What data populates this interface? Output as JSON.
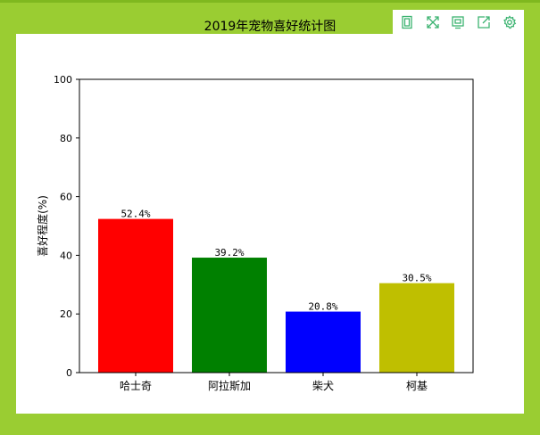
{
  "toolbox": {
    "icons": [
      "data-view-icon",
      "zoom-icon",
      "restore-icon",
      "save-image-icon",
      "settings-icon"
    ],
    "color": "#3cb371"
  },
  "chart_data": {
    "type": "bar",
    "title": "2019年宠物喜好统计图",
    "categories": [
      "哈士奇",
      "阿拉斯加",
      "柴犬",
      "柯基"
    ],
    "values": [
      52.4,
      39.2,
      20.8,
      30.5
    ],
    "data_labels": [
      "52.4%",
      "39.2%",
      "20.8%",
      "30.5%"
    ],
    "colors": [
      "#ff0000",
      "#008000",
      "#0000ff",
      "#bfbf00"
    ],
    "xlabel": "",
    "ylabel": "喜好程度(%)",
    "ylim": [
      0,
      100
    ],
    "yticks": [
      0,
      20,
      40,
      60,
      80,
      100
    ],
    "grid": false,
    "legend": "none"
  }
}
